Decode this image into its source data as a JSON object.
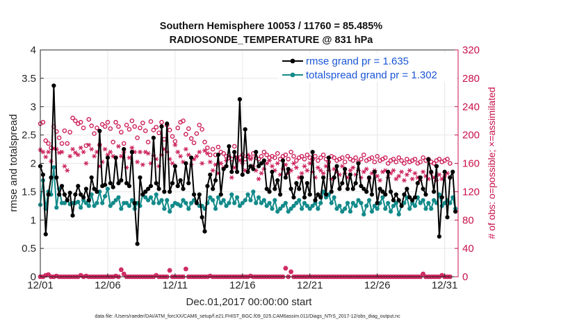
{
  "chart_data": {
    "type": "line",
    "title_line1": "Southern Hemisphere 10053 / 11760 = 85.485%",
    "title_line2": "RADIOSONDE_TEMPERATURE @ 831 hPa",
    "xlabel": "Dec.01,2017 00:00:00 start",
    "ylabel_left": "rmse and totalspread",
    "ylabel_right": "# of obs: o=possible; ×=assimilated",
    "footer": "data file: /Users/raeder/DAI/ATM_forcXX/CAM6_setup/f.e21.FHIST_BGC.f09_025.CAM6assim.011/Diags_NTrS_2017-12/obs_diag_output.nc",
    "ylim_left": [
      0,
      4
    ],
    "ylim_right": [
      0,
      320
    ],
    "yticks_left": [
      "0",
      "0.5",
      "1",
      "1.5",
      "2",
      "2.5",
      "3",
      "3.5",
      "4"
    ],
    "yticks_right": [
      "0",
      "40",
      "80",
      "120",
      "160",
      "200",
      "240",
      "280",
      "320"
    ],
    "xlim": [
      0,
      31
    ],
    "xticks": [
      {
        "x": 0,
        "label": "12/01"
      },
      {
        "x": 5,
        "label": "12/06"
      },
      {
        "x": 10,
        "label": "12/11"
      },
      {
        "x": 15,
        "label": "12/16"
      },
      {
        "x": 20,
        "label": "12/21"
      },
      {
        "x": 25,
        "label": "12/26"
      },
      {
        "x": 30,
        "label": "12/31"
      }
    ],
    "colors": {
      "rmse": "#000000",
      "spread": "#138a8a",
      "obs": "#cc1f5a",
      "axis_right": "#c8104b",
      "legend_text": "#1a55d6"
    },
    "legend": {
      "rmse_label": "rmse grand pr = 1.635",
      "spread_label": "totalspread grand pr = 1.302"
    },
    "series": [
      {
        "name": "rmse",
        "axis": "left",
        "values": [
          1.95,
          1.8,
          0.75,
          1.45,
          1.75,
          3.37,
          1.75,
          1.45,
          1.6,
          1.45,
          1.35,
          1.48,
          1.08,
          1.45,
          1.6,
          1.45,
          1.4,
          1.55,
          1.35,
          1.75,
          1.55,
          1.5,
          2.57,
          1.6,
          1.62,
          2.1,
          1.65,
          1.58,
          2.1,
          1.65,
          1.7,
          2.25,
          1.65,
          1.6,
          2.2,
          1.3,
          0.58,
          1.75,
          1.45,
          1.5,
          1.55,
          1.6,
          2.45,
          1.65,
          1.55,
          2.65,
          1.5,
          2.7,
          1.5,
          1.65,
          1.95,
          1.6,
          1.7,
          1.55,
          2.0,
          1.65,
          2.1,
          1.45,
          1.3,
          1.45,
          1.05,
          0.8,
          1.6,
          1.8,
          1.55,
          1.7,
          2.15,
          1.45,
          1.9,
          1.95,
          2.3,
          1.85,
          2.2,
          1.85,
          3.13,
          1.8,
          2.6,
          1.85,
          1.95,
          1.9,
          2.2,
          1.95,
          2.0,
          2.05,
          1.55,
          1.5,
          1.85,
          1.55,
          1.7,
          1.45,
          2.05,
          1.75,
          1.9,
          1.55,
          1.4,
          1.65,
          1.55,
          1.75,
          1.4,
          1.65,
          1.45,
          2.2,
          1.35,
          1.45,
          1.4,
          1.75,
          1.45,
          2.1,
          1.5,
          1.75,
          1.95,
          1.55,
          1.65,
          1.9,
          1.55,
          1.8,
          1.55,
          1.65,
          2.0,
          1.6,
          1.55,
          1.5,
          1.75,
          1.45,
          1.85,
          1.3,
          1.55,
          1.5,
          1.45,
          1.85,
          1.5,
          1.35,
          1.45,
          1.35,
          1.25,
          1.45,
          1.55,
          1.4,
          1.35,
          1.4,
          1.65,
          1.75,
          1.55,
          1.45,
          2.07,
          1.85,
          1.5,
          1.95,
          0.71,
          1.4,
          1.85,
          1.05,
          1.75,
          1.85,
          1.15
        ],
        "x_start": 0,
        "x_step": 0.2
      },
      {
        "name": "totalspread",
        "axis": "left",
        "values": [
          1.27,
          1.7,
          1.2,
          1.5,
          1.45,
          1.93,
          1.22,
          1.55,
          1.3,
          1.3,
          1.35,
          1.28,
          1.3,
          1.3,
          1.32,
          1.22,
          1.35,
          1.3,
          1.25,
          1.45,
          1.25,
          1.3,
          1.5,
          1.3,
          1.42,
          1.55,
          1.25,
          1.3,
          1.35,
          1.4,
          1.2,
          1.3,
          1.3,
          1.25,
          1.35,
          1.2,
          1.3,
          1.25,
          1.45,
          1.4,
          1.35,
          1.4,
          1.3,
          1.45,
          1.3,
          1.35,
          1.2,
          1.35,
          1.15,
          1.25,
          1.3,
          1.28,
          1.25,
          1.35,
          1.3,
          1.2,
          1.3,
          1.35,
          1.3,
          1.25,
          1.25,
          1.2,
          1.3,
          1.4,
          1.35,
          1.2,
          1.4,
          1.3,
          1.35,
          1.25,
          1.3,
          1.45,
          1.3,
          1.4,
          1.25,
          1.3,
          1.35,
          1.45,
          1.35,
          1.5,
          1.3,
          1.4,
          1.3,
          1.35,
          1.25,
          1.3,
          1.2,
          1.35,
          1.15,
          1.2,
          1.25,
          1.3,
          1.15,
          1.2,
          1.25,
          1.3,
          1.35,
          1.2,
          1.3,
          1.25,
          1.2,
          1.25,
          1.3,
          1.2,
          1.3,
          1.5,
          1.4,
          1.45,
          1.3,
          1.4,
          1.2,
          1.25,
          1.15,
          1.2,
          1.3,
          1.15,
          1.3,
          1.25,
          1.35,
          1.3,
          1.1,
          1.25,
          1.35,
          1.15,
          1.25,
          1.2,
          1.3,
          1.4,
          1.2,
          1.3,
          1.15,
          1.25,
          1.3,
          1.1,
          1.25,
          1.3,
          1.4,
          1.2,
          1.3,
          1.25,
          1.4,
          1.3,
          1.35,
          1.2,
          1.3,
          1.2,
          1.35,
          1.3,
          1.45,
          1.25,
          1.3,
          1.35,
          1.3,
          1.4,
          1.2
        ],
        "x_start": 0,
        "x_step": 0.2
      },
      {
        "name": "obs_possible",
        "axis": "right",
        "marker": "circle",
        "values": [
          216,
          218,
          192,
          188,
          182,
          212,
          205,
          196,
          188,
          206,
          188,
          204,
          224,
          220,
          216,
          218,
          210,
          185,
          222,
          213,
          202,
          210,
          186,
          215,
          212,
          218,
          209,
          190,
          218,
          212,
          204,
          188,
          214,
          208,
          220,
          212,
          196,
          210,
          217,
          206,
          190,
          219,
          207,
          211,
          203,
          218,
          194,
          214,
          207,
          198,
          191,
          210,
          218,
          220,
          201,
          209,
          195,
          189,
          202,
          214,
          208,
          190,
          182,
          172,
          180,
          172,
          183,
          176,
          174,
          170,
          168,
          166,
          184,
          168,
          168,
          172,
          166,
          170,
          168,
          174,
          168,
          166,
          170,
          176,
          172,
          168,
          170,
          168,
          174,
          166,
          170,
          172,
          166,
          176,
          170,
          164,
          168,
          170,
          166,
          172,
          168,
          166,
          170,
          164,
          168,
          172,
          166,
          162,
          170,
          168,
          164,
          166,
          168,
          162,
          170,
          166,
          164,
          168,
          162,
          166,
          172,
          164,
          166,
          168,
          162,
          170,
          164,
          166,
          168,
          160,
          164,
          166,
          162,
          168,
          164,
          160,
          166,
          162,
          164,
          166,
          160,
          162,
          168,
          164,
          166,
          162,
          160,
          164,
          166,
          162,
          164,
          166,
          160
        ],
        "x_start": 0,
        "x_step": 0.2
      },
      {
        "name": "obs_assimilated",
        "axis": "right",
        "marker": "asterisk",
        "values": [
          179,
          176,
          169,
          176,
          163,
          181,
          180,
          175,
          176,
          156,
          150,
          170,
          180,
          175,
          172,
          182,
          176,
          160,
          186,
          180,
          170,
          176,
          156,
          162,
          180,
          172,
          176,
          170,
          168,
          184,
          170,
          176,
          154,
          168,
          182,
          176,
          162,
          176,
          158,
          176,
          174,
          160,
          171,
          166,
          156,
          172,
          180,
          176,
          166,
          160,
          186,
          176,
          170,
          162,
          180,
          172,
          158,
          166,
          170,
          176,
          160,
          178,
          174,
          162,
          150,
          158,
          146,
          160,
          154,
          164,
          170,
          140,
          154,
          168,
          164,
          160,
          150,
          172,
          166,
          156,
          150,
          138,
          146,
          152,
          160,
          164,
          156,
          150,
          160,
          144,
          152,
          158,
          146,
          150,
          160,
          154,
          140,
          146,
          156,
          150,
          160,
          148,
          140,
          154,
          150,
          146,
          156,
          150,
          138,
          152,
          148,
          144,
          156,
          146,
          140,
          150,
          154,
          144,
          150,
          140,
          148,
          152,
          138,
          146,
          150,
          142,
          136,
          148,
          150,
          140,
          146,
          150,
          138,
          142,
          148,
          136,
          144,
          150,
          138,
          146,
          140,
          136,
          148,
          142,
          138,
          146,
          140,
          136,
          144,
          138,
          142,
          146,
          140
        ],
        "x_start": 0,
        "x_step": 0.2
      },
      {
        "name": "obs_possible_minus_assimilated_low",
        "axis": "right",
        "marker": "circle_and_asterisk",
        "values": [
          0,
          0,
          2,
          3,
          0,
          0,
          1,
          0,
          0,
          0,
          0,
          0,
          0,
          0,
          0,
          2,
          0,
          1,
          0,
          0,
          0,
          0,
          0,
          0,
          0,
          0,
          0,
          0,
          1,
          0,
          10,
          4,
          0,
          0,
          0,
          0,
          0,
          0,
          0,
          0,
          0,
          0,
          0,
          2,
          0,
          0,
          0,
          0,
          9,
          0,
          0,
          0,
          0,
          0,
          11,
          0,
          0,
          0,
          0,
          0,
          0,
          0,
          0,
          1,
          0,
          0,
          0,
          0,
          0,
          0,
          0,
          0,
          0,
          0,
          0,
          0,
          0,
          0,
          1,
          0,
          0,
          0,
          0,
          0,
          0,
          0,
          0,
          0,
          0,
          0,
          0,
          12,
          0,
          7,
          0,
          0,
          0,
          0,
          0,
          0,
          0,
          0,
          0,
          0,
          0,
          0,
          0,
          0,
          0,
          0,
          0,
          0,
          0,
          0,
          0,
          0,
          0,
          0,
          0,
          0,
          0,
          0,
          0,
          0,
          0,
          0,
          0,
          0,
          0,
          0,
          0,
          0,
          0,
          0,
          0,
          0,
          0,
          0,
          0,
          0,
          0,
          0,
          4,
          0,
          0,
          0,
          0,
          0,
          0,
          2,
          0,
          0,
          0
        ],
        "x_start": 0,
        "x_step": 0.2
      }
    ]
  }
}
